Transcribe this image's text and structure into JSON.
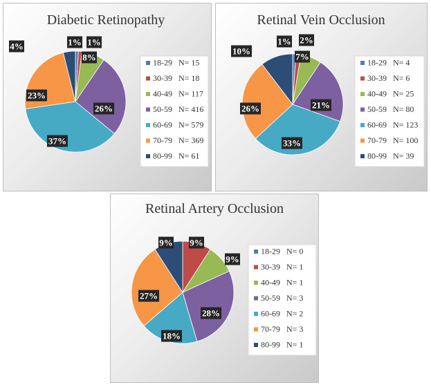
{
  "colors": {
    "18-29": "#4a7ebb",
    "30-39": "#be4b48",
    "40-49": "#98b954",
    "50-59": "#7d60a0",
    "60-69": "#46aac5",
    "70-79": "#f79646",
    "80-99": "#2c4d75"
  },
  "chart_data": [
    {
      "type": "pie",
      "title": "Diabetic Retinopathy",
      "categories": [
        "18-29",
        "30-39",
        "40-49",
        "50-59",
        "60-69",
        "70-79",
        "80-99"
      ],
      "values": [
        15,
        18,
        117,
        416,
        579,
        369,
        61
      ],
      "legend": [
        "18-29   N= 15",
        "30-39   N= 18",
        "40-49   N= 117",
        "50-59   N= 416",
        "60-69   N= 579",
        "70-79   N= 369",
        "80-99   N= 61"
      ],
      "labels": [
        "1%",
        "1%",
        "8%",
        "26%",
        "37%",
        "23%",
        "4%"
      ],
      "legend_position": "right"
    },
    {
      "type": "pie",
      "title": "Retinal Vein Occlusion",
      "categories": [
        "18-29",
        "30-39",
        "40-49",
        "50-59",
        "60-69",
        "70-79",
        "80-99"
      ],
      "values": [
        4,
        6,
        25,
        80,
        123,
        100,
        39
      ],
      "legend": [
        "18-29   N= 4",
        "30-39   N= 6",
        "40-49   N= 25",
        "50-59   N= 80",
        "60-69   N= 123",
        "70-79   N= 100",
        "80-99   N= 39"
      ],
      "labels": [
        "",
        "2%",
        "7%",
        "21%",
        "33%",
        "26%",
        "10%"
      ],
      "extra_label": "1%",
      "legend_position": "right"
    },
    {
      "type": "pie",
      "title": "Retinal Artery Occlusion",
      "categories": [
        "18-29",
        "30-39",
        "40-49",
        "50-59",
        "60-69",
        "70-79",
        "80-99"
      ],
      "values": [
        0,
        1,
        1,
        3,
        2,
        3,
        1
      ],
      "legend": [
        "18-29   N= 0",
        "30-39   N= 1",
        "40-49   N= 1",
        "50-59   N= 3",
        "60-69   N= 2",
        "70-79   N= 3",
        "80-99   N= 1"
      ],
      "labels": [
        "",
        "9%",
        "9%",
        "28%",
        "18%",
        "27%",
        "9%"
      ],
      "legend_position": "right"
    }
  ]
}
